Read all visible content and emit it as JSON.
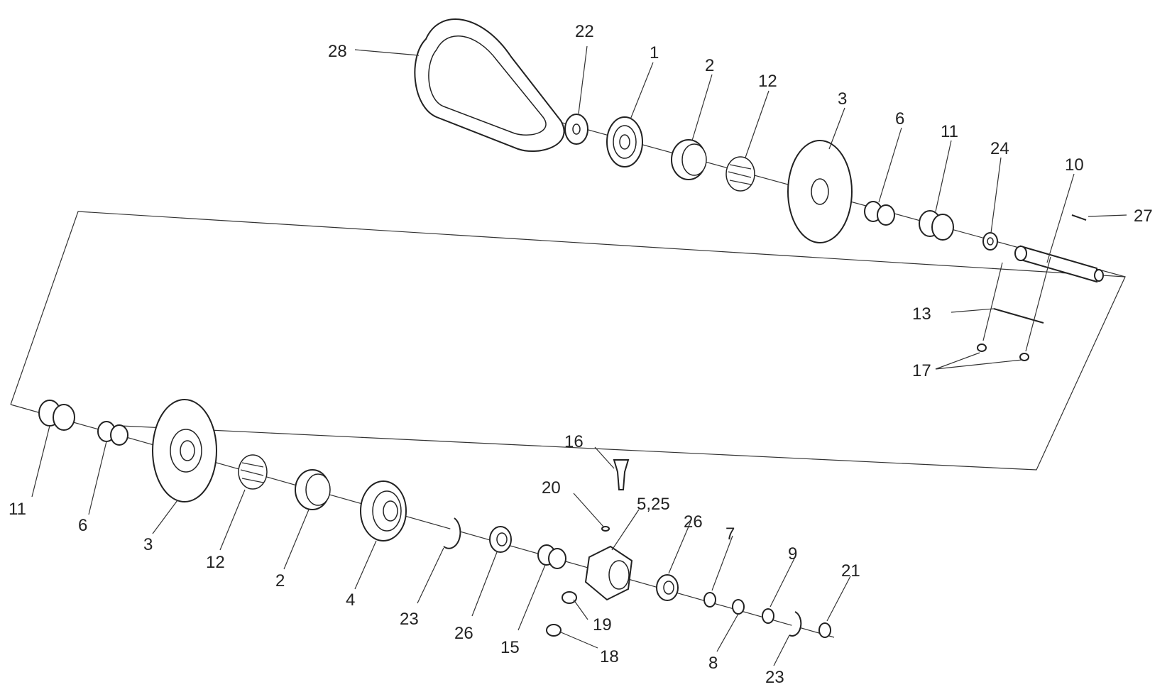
{
  "labels": {
    "l28": "28",
    "l22": "22",
    "l1": "1",
    "l2a": "2",
    "l12a": "12",
    "l3a": "3",
    "l6a": "6",
    "l11a": "11",
    "l24": "24",
    "l10": "10",
    "l27": "27",
    "l13": "13",
    "l17": "17",
    "l11b": "11",
    "l6b": "6",
    "l3b": "3",
    "l12b": "12",
    "l2b": "2",
    "l4": "4",
    "l23a": "23",
    "l26a": "26",
    "l15": "15",
    "l16": "16",
    "l20": "20",
    "l525": "5,25",
    "l19": "19",
    "l18": "18",
    "l26b": "26",
    "l7": "7",
    "l8": "8",
    "l9": "9",
    "l23b": "23",
    "l21": "21"
  }
}
